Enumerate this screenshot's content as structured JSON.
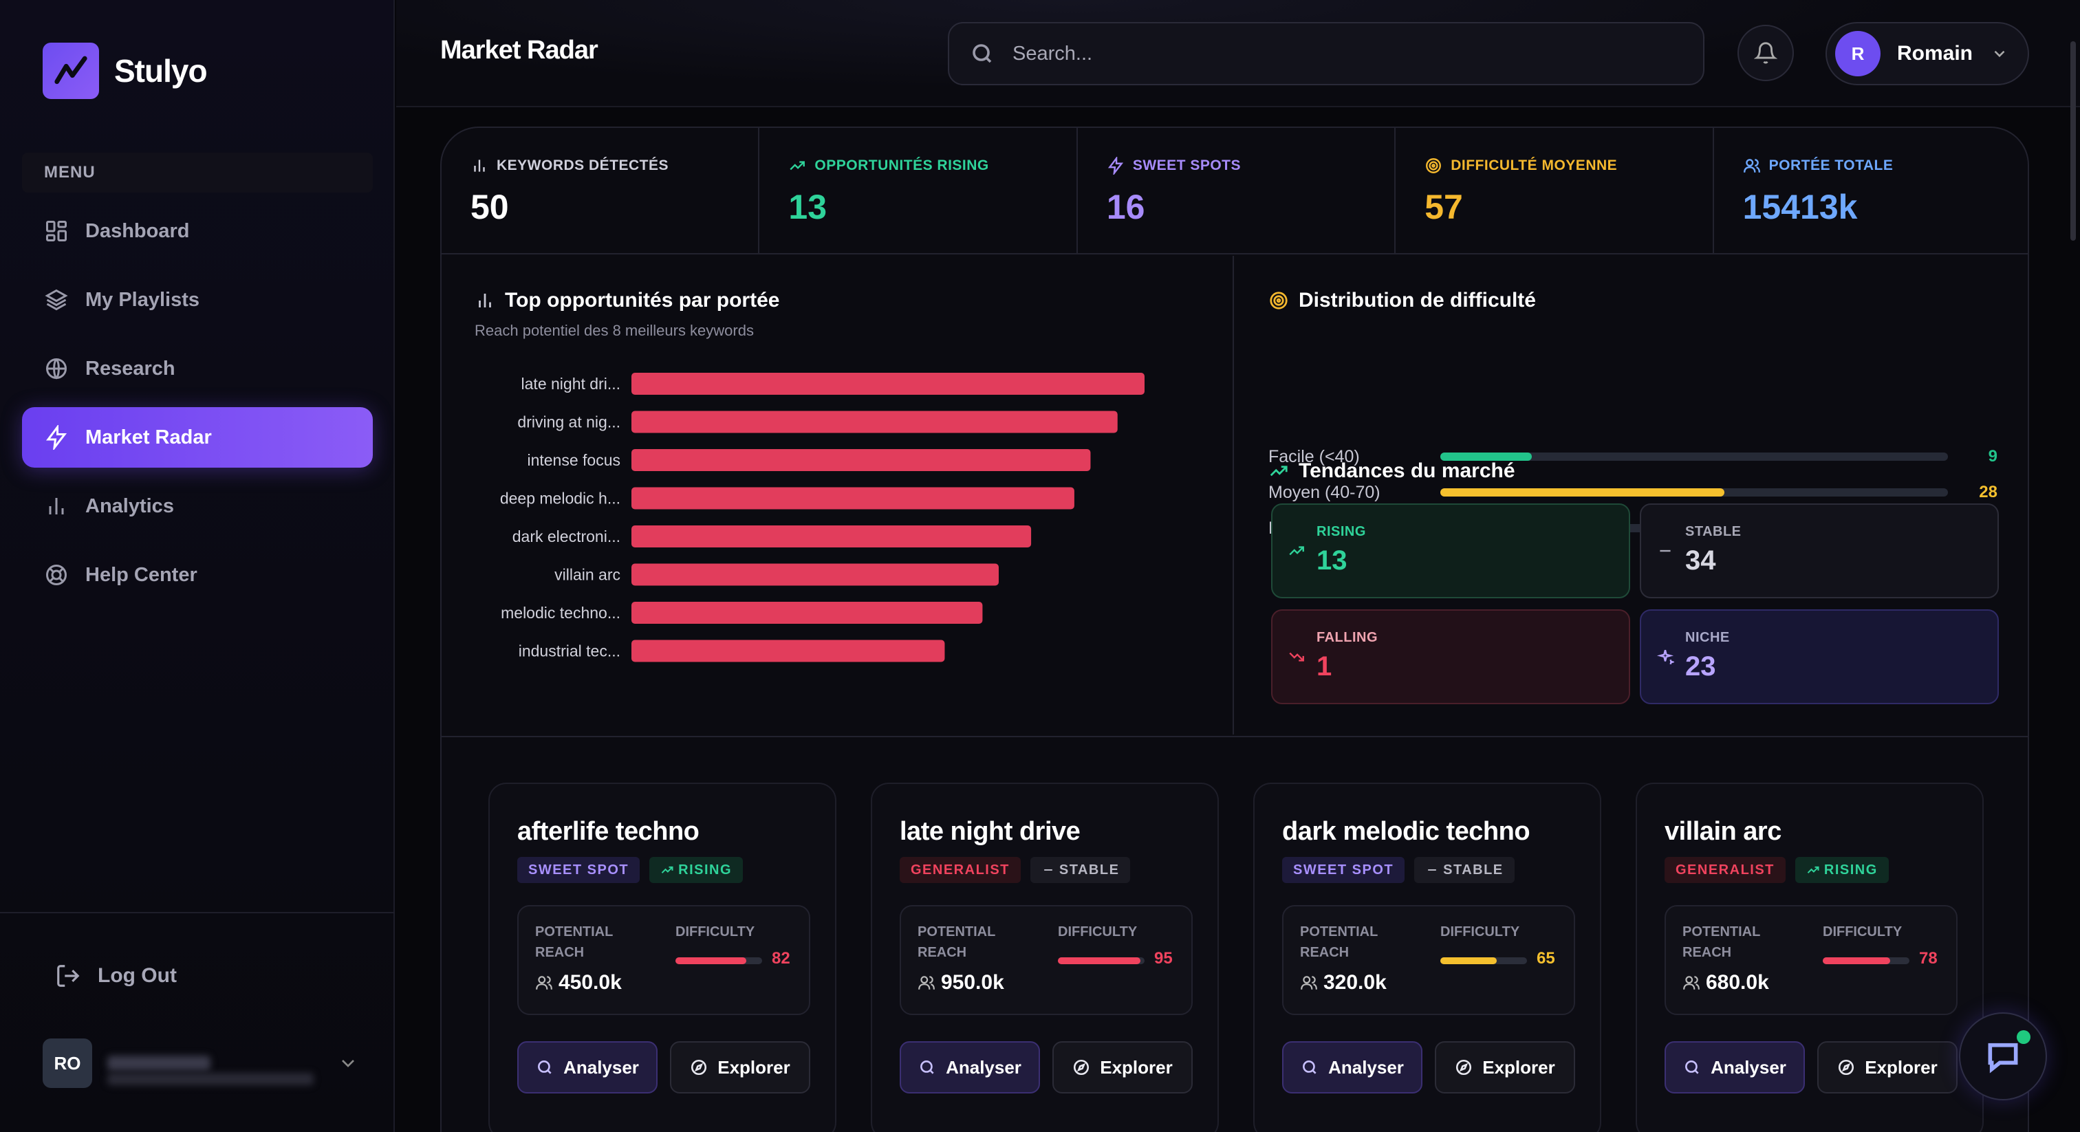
{
  "app": {
    "name": "Stulyo"
  },
  "sidebar": {
    "menu_label": "MENU",
    "items": [
      {
        "label": "Dashboard",
        "icon": "grid-icon"
      },
      {
        "label": "My Playlists",
        "icon": "layers-icon"
      },
      {
        "label": "Research",
        "icon": "globe-icon"
      },
      {
        "label": "Market Radar",
        "icon": "lightning-icon",
        "active": true
      },
      {
        "label": "Analytics",
        "icon": "bar-chart-icon"
      },
      {
        "label": "Help Center",
        "icon": "lifebuoy-icon"
      }
    ],
    "logout_label": "Log Out",
    "user_initials": "RO"
  },
  "header": {
    "title": "Market Radar",
    "search_placeholder": "Search...",
    "user_initial": "R",
    "user_name": "Romain"
  },
  "stats": [
    {
      "label": "KEYWORDS DÉTECTÉS",
      "value": "50",
      "color": "#ffffff",
      "label_color": "#d0d0dc"
    },
    {
      "label": "OPPORTUNITÉS RISING",
      "value": "13",
      "color": "#2fd39a",
      "label_color": "#2fd39a"
    },
    {
      "label": "SWEET SPOTS",
      "value": "16",
      "color": "#a78bfa",
      "label_color": "#a78bfa"
    },
    {
      "label": "DIFFICULTÉ MOYENNE",
      "value": "57",
      "color": "#f5b82e",
      "label_color": "#f5b82e"
    },
    {
      "label": "PORTÉE TOTALE",
      "value": "15413k",
      "color": "#6ea8ff",
      "label_color": "#6ea8ff"
    }
  ],
  "chart": {
    "title": "Top opportunités par portée",
    "subtitle": "Reach potentiel des 8 meilleurs keywords"
  },
  "chart_data": {
    "type": "bar",
    "orientation": "horizontal",
    "categories": [
      "late night dri...",
      "driving at nig...",
      "intense focus",
      "deep melodic h...",
      "dark electroni...",
      "villain arc",
      "melodic techno...",
      "industrial tec..."
    ],
    "values": [
      950,
      900,
      850,
      820,
      740,
      680,
      650,
      580
    ],
    "color": "#e23d5c"
  },
  "distribution": {
    "title": "Distribution de difficulté",
    "rows": [
      {
        "label": "Facile (<40)",
        "value": 9,
        "fraction": 0.18,
        "color": "#22c38a"
      },
      {
        "label": "Moyen (40-70)",
        "value": 28,
        "fraction": 0.56,
        "color": "#f5c02e"
      },
      {
        "label": "Difficile (>70)",
        "value": 13,
        "fraction": 0.26,
        "color": "#f0435e"
      }
    ]
  },
  "trends": {
    "title": "Tendances du marché",
    "items": [
      {
        "label": "RISING",
        "value": "13",
        "color": "#2fd39a",
        "bg": "#0e1f1a",
        "border": "#1f4a38"
      },
      {
        "label": "STABLE",
        "value": "34",
        "color": "#d8d8e2",
        "bg": "#12121a",
        "border": "#2c2c38",
        "label_color": "#a8a8b6"
      },
      {
        "label": "FALLING",
        "value": "1",
        "color": "#f0435e",
        "bg": "#221018",
        "border": "#4a1f2a",
        "label_color": "#f0a4b0"
      },
      {
        "label": "NICHE",
        "value": "23",
        "color": "#b8a4ff",
        "bg": "#171634",
        "border": "#2f2a66",
        "label_color": "#a8a8c8"
      }
    ]
  },
  "cards": [
    {
      "title": "afterlife techno",
      "tag1": "SWEET SPOT",
      "tag1_type": "sweet",
      "tag2": "RISING",
      "tag2_type": "rising",
      "reach_label": "POTENTIAL REACH",
      "difficulty_label": "DIFFICULTY",
      "reach": "450.0k",
      "difficulty": "82",
      "difficulty_value": 82,
      "diff_color": "#f0435e",
      "analyser": "Analyser",
      "explorer": "Explorer"
    },
    {
      "title": "late night drive",
      "tag1": "GENERALIST",
      "tag1_type": "generalist",
      "tag2": "STABLE",
      "tag2_type": "stable",
      "reach_label": "POTENTIAL REACH",
      "difficulty_label": "DIFFICULTY",
      "reach": "950.0k",
      "difficulty": "95",
      "difficulty_value": 95,
      "diff_color": "#f0435e",
      "analyser": "Analyser",
      "explorer": "Explorer"
    },
    {
      "title": "dark melodic techno",
      "tag1": "SWEET SPOT",
      "tag1_type": "sweet",
      "tag2": "STABLE",
      "tag2_type": "stable",
      "reach_label": "POTENTIAL REACH",
      "difficulty_label": "DIFFICULTY",
      "reach": "320.0k",
      "difficulty": "65",
      "difficulty_value": 65,
      "diff_color": "#f5c02e",
      "analyser": "Analyser",
      "explorer": "Explorer"
    },
    {
      "title": "villain arc",
      "tag1": "GENERALIST",
      "tag1_type": "generalist",
      "tag2": "RISING",
      "tag2_type": "rising",
      "reach_label": "POTENTIAL REACH",
      "difficulty_label": "DIFFICULTY",
      "reach": "680.0k",
      "difficulty": "78",
      "difficulty_value": 78,
      "diff_color": "#f0435e",
      "analyser": "Analyser",
      "explorer": "Explorer"
    }
  ]
}
